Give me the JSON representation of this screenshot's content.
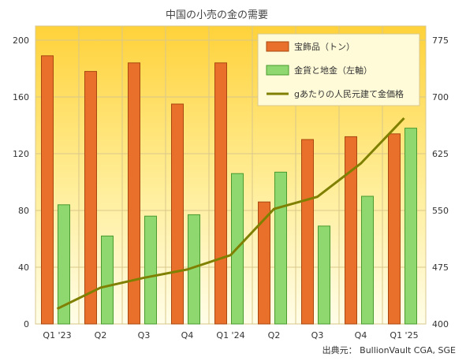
{
  "chart_data": {
    "type": "bar",
    "title": "中国の小売の金の需要",
    "categories": [
      "Q1 '23",
      "Q2",
      "Q3",
      "Q4",
      "Q1 '24",
      "Q2",
      "Q3",
      "Q4",
      "Q1 '25"
    ],
    "series": [
      {
        "name": "宝飾品（トン）",
        "type": "bar",
        "axis": "left",
        "color": "#e8702a",
        "values": [
          189,
          178,
          184,
          155,
          184,
          86,
          130,
          132,
          134
        ]
      },
      {
        "name": "金貨と地金（左軸）",
        "type": "bar",
        "axis": "left",
        "color": "#8fd870",
        "values": [
          84,
          62,
          76,
          77,
          106,
          107,
          69,
          90,
          138
        ]
      },
      {
        "name": "gあたりの人民元建て金価格",
        "type": "line",
        "axis": "right",
        "color": "#808000",
        "values": [
          420,
          448,
          461,
          472,
          491,
          552,
          568,
          612,
          672
        ]
      }
    ],
    "y_left": {
      "min": 0,
      "max": 210,
      "ticks": [
        0,
        40,
        80,
        120,
        160,
        200
      ]
    },
    "y_right": {
      "min": 400,
      "max": 793.75,
      "ticks": [
        400,
        475,
        550,
        625,
        700,
        775
      ]
    },
    "grid": true,
    "legend": "top-right",
    "source": "出典元： BullionVault CGA, SGE"
  }
}
